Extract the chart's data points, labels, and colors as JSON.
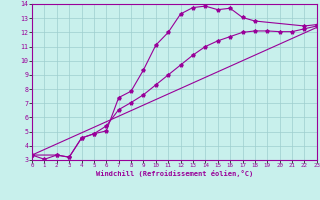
{
  "color": "#990099",
  "bg_color": "#c8f0ec",
  "grid_color": "#9ecece",
  "xlabel": "Windchill (Refroidissement éolien,°C)",
  "xlim": [
    0,
    23
  ],
  "ylim": [
    3,
    14
  ],
  "xticks": [
    0,
    1,
    2,
    3,
    4,
    5,
    6,
    7,
    8,
    9,
    10,
    11,
    12,
    13,
    14,
    15,
    16,
    17,
    18,
    19,
    20,
    21,
    22,
    23
  ],
  "yticks": [
    3,
    4,
    5,
    6,
    7,
    8,
    9,
    10,
    11,
    12,
    13,
    14
  ],
  "line1_x": [
    0,
    1,
    2,
    3,
    4,
    5,
    6,
    7,
    8,
    9,
    10,
    11,
    12,
    13,
    14,
    15,
    16,
    17,
    18,
    22,
    23
  ],
  "line1_y": [
    3.35,
    3.05,
    3.35,
    3.2,
    4.55,
    4.85,
    5.05,
    7.4,
    7.85,
    9.35,
    11.1,
    12.0,
    13.3,
    13.75,
    13.85,
    13.6,
    13.7,
    13.05,
    12.8,
    12.45,
    12.55
  ],
  "line2_x": [
    0,
    2,
    3,
    4,
    5,
    6,
    7,
    8,
    9,
    10,
    11,
    12,
    13,
    14,
    15,
    16,
    17,
    18,
    19,
    20,
    21,
    22,
    23
  ],
  "line2_y": [
    3.35,
    3.35,
    3.2,
    4.55,
    4.85,
    5.4,
    6.55,
    7.05,
    7.6,
    8.3,
    9.0,
    9.7,
    10.4,
    11.0,
    11.4,
    11.7,
    12.0,
    12.1,
    12.1,
    12.05,
    12.05,
    12.25,
    12.45
  ],
  "line3_x": [
    0,
    23
  ],
  "line3_y": [
    3.35,
    12.35
  ]
}
